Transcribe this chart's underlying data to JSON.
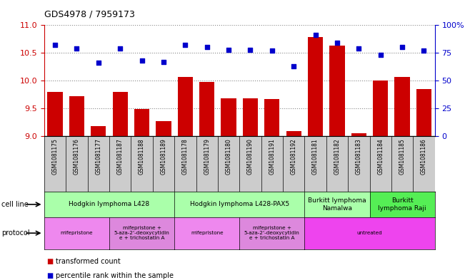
{
  "title": "GDS4978 / 7959173",
  "samples": [
    "GSM1081175",
    "GSM1081176",
    "GSM1081177",
    "GSM1081187",
    "GSM1081188",
    "GSM1081189",
    "GSM1081178",
    "GSM1081179",
    "GSM1081180",
    "GSM1081190",
    "GSM1081191",
    "GSM1081192",
    "GSM1081181",
    "GSM1081182",
    "GSM1081183",
    "GSM1081184",
    "GSM1081185",
    "GSM1081186"
  ],
  "transformed_count": [
    9.8,
    9.72,
    9.18,
    9.8,
    9.48,
    9.27,
    10.07,
    9.98,
    9.68,
    9.68,
    9.67,
    9.08,
    10.78,
    10.63,
    9.05,
    10.0,
    10.06,
    9.85
  ],
  "percentile_rank": [
    82,
    79,
    66,
    79,
    68,
    67,
    82,
    80,
    78,
    78,
    77,
    63,
    91,
    84,
    79,
    73,
    80,
    77
  ],
  "ylim_left": [
    9.0,
    11.0
  ],
  "ylim_right": [
    0,
    100
  ],
  "yticks_left": [
    9.0,
    9.5,
    10.0,
    10.5,
    11.0
  ],
  "yticks_right": [
    0,
    25,
    50,
    75,
    100
  ],
  "bar_color": "#cc0000",
  "dot_color": "#0000cc",
  "cell_line_groups": [
    {
      "label": "Hodgkin lymphoma L428",
      "start": 0,
      "end": 5,
      "color": "#aaffaa"
    },
    {
      "label": "Hodgkin lymphoma L428-PAX5",
      "start": 6,
      "end": 11,
      "color": "#aaffaa"
    },
    {
      "label": "Burkitt lymphoma\nNamalwa",
      "start": 12,
      "end": 14,
      "color": "#aaffaa"
    },
    {
      "label": "Burkitt\nlymphoma Raji",
      "start": 15,
      "end": 17,
      "color": "#55ee55"
    }
  ],
  "protocol_groups": [
    {
      "label": "mifepristone",
      "start": 0,
      "end": 2,
      "color": "#ee88ee"
    },
    {
      "label": "mifepristone +\n5-aza-2'-deoxycytidin\ne + trichostatin A",
      "start": 3,
      "end": 5,
      "color": "#dd88dd"
    },
    {
      "label": "mifepristone",
      "start": 6,
      "end": 8,
      "color": "#ee88ee"
    },
    {
      "label": "mifepristone +\n5-aza-2'-deoxycytidin\ne + trichostatin A",
      "start": 9,
      "end": 11,
      "color": "#dd88dd"
    },
    {
      "label": "untreated",
      "start": 12,
      "end": 17,
      "color": "#ee44ee"
    }
  ],
  "xtick_bg": "#cccccc",
  "left_axis_color": "#cc0000",
  "right_axis_color": "#0000cc",
  "grid_color": "#888888"
}
